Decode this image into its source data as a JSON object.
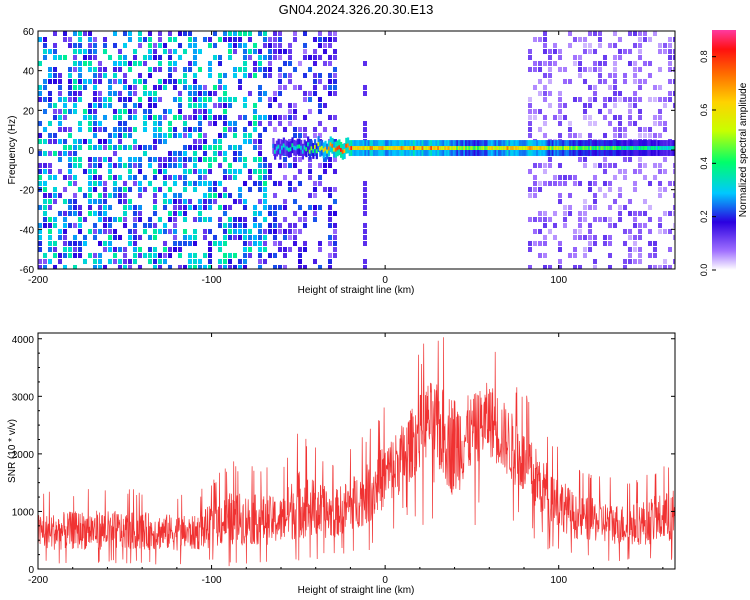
{
  "title": "GN04.2024.326.20.30.E13",
  "chart_data": [
    {
      "type": "heatmap",
      "xlabel": "Height of straight line (km)",
      "ylabel": "Frequency (Hz)",
      "xlim": [
        -200,
        167
      ],
      "ylim": [
        -60,
        60
      ],
      "xticks": [
        -200,
        -100,
        0,
        100
      ],
      "yticks": [
        -60,
        -40,
        -20,
        0,
        20,
        40,
        60
      ],
      "colorbar": {
        "label": "Normalized spectral amplitude",
        "range": [
          0,
          0.9
        ],
        "ticks": [
          "0.0",
          "0.2",
          "0.4",
          "0.6",
          "0.8"
        ]
      },
      "noise_regions": [
        {
          "x_start": -200,
          "x_end": -70,
          "level": 0.35
        },
        {
          "x_start": -70,
          "x_end": -30,
          "level": 0.22
        },
        {
          "x_start": -30,
          "x_end": 80,
          "level": 0.0
        },
        {
          "x_start": 80,
          "x_end": 167,
          "level": 0.12
        }
      ],
      "signal_band": {
        "x_start": -65,
        "x_end": 167,
        "center_freq": 1,
        "half_width": 3,
        "segments": [
          {
            "x": -65,
            "amp": 0.35
          },
          {
            "x": -45,
            "amp": 0.45
          },
          {
            "x": -25,
            "amp": 0.9
          },
          {
            "x": -5,
            "amp": 0.7
          },
          {
            "x": 20,
            "amp": 0.85
          },
          {
            "x": 50,
            "amp": 0.55
          },
          {
            "x": 75,
            "amp": 0.8
          },
          {
            "x": 100,
            "amp": 0.6
          },
          {
            "x": 140,
            "amp": 0.45
          },
          {
            "x": 167,
            "amp": 0.4
          }
        ]
      }
    },
    {
      "type": "line",
      "xlabel": "Height of straight line (km)",
      "ylabel": "SNR (10 * v/v)",
      "xlim": [
        -200,
        167
      ],
      "ylim": [
        0,
        4100
      ],
      "xticks": [
        -200,
        -100,
        0,
        100
      ],
      "yticks": [
        0,
        1000,
        2000,
        3000,
        4000
      ],
      "color": "#f03232",
      "envelope": [
        {
          "x": -200,
          "upper": 1300,
          "lower": 150
        },
        {
          "x": -170,
          "upper": 1400,
          "lower": 150
        },
        {
          "x": -140,
          "upper": 1350,
          "lower": 150
        },
        {
          "x": -110,
          "upper": 1250,
          "lower": 150
        },
        {
          "x": -90,
          "upper": 1850,
          "lower": 150
        },
        {
          "x": -60,
          "upper": 1700,
          "lower": 200
        },
        {
          "x": -50,
          "upper": 2400,
          "lower": 200
        },
        {
          "x": -30,
          "upper": 1800,
          "lower": 300
        },
        {
          "x": -10,
          "upper": 2400,
          "lower": 500
        },
        {
          "x": 10,
          "upper": 3200,
          "lower": 1000
        },
        {
          "x": 25,
          "upper": 4000,
          "lower": 1600
        },
        {
          "x": 40,
          "upper": 4050,
          "lower": 700
        },
        {
          "x": 50,
          "upper": 3700,
          "lower": 1400
        },
        {
          "x": 60,
          "upper": 4000,
          "lower": 1600
        },
        {
          "x": 75,
          "upper": 3300,
          "lower": 1100
        },
        {
          "x": 90,
          "upper": 2600,
          "lower": 600
        },
        {
          "x": 110,
          "upper": 1700,
          "lower": 300
        },
        {
          "x": 140,
          "upper": 1500,
          "lower": 200
        },
        {
          "x": 167,
          "upper": 1900,
          "lower": 200
        }
      ]
    }
  ]
}
